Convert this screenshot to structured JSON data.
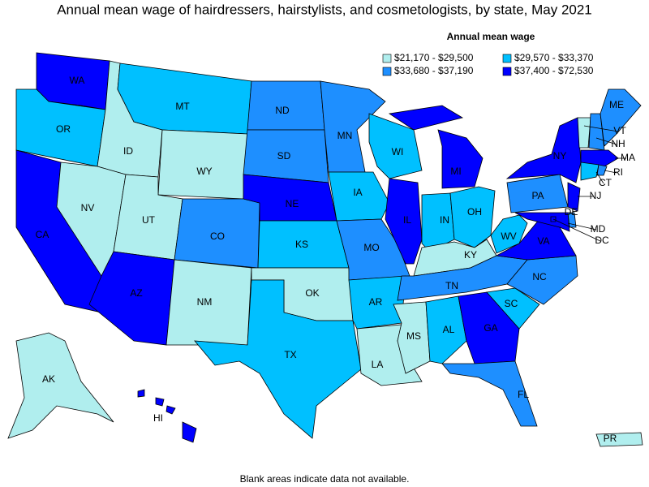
{
  "title": "Annual mean wage of hairdressers, hairstylists, and cosmetologists, by state, May 2021",
  "legend": {
    "title": "Annual mean wage",
    "items": [
      {
        "label": "$21,170 - $29,500",
        "color": "#b0eeee"
      },
      {
        "label": "$29,570 - $33,370",
        "color": "#00c0ff"
      },
      {
        "label": "$33,680 - $37,190",
        "color": "#1e8fff"
      },
      {
        "label": "$37,400 - $72,530",
        "color": "#0000ff"
      }
    ]
  },
  "states": [
    {
      "abbr": "WA",
      "range": 3
    },
    {
      "abbr": "OR",
      "range": 1
    },
    {
      "abbr": "CA",
      "range": 3
    },
    {
      "abbr": "ID",
      "range": 0
    },
    {
      "abbr": "NV",
      "range": 0
    },
    {
      "abbr": "MT",
      "range": 1
    },
    {
      "abbr": "WY",
      "range": 0
    },
    {
      "abbr": "UT",
      "range": 0
    },
    {
      "abbr": "AZ",
      "range": 3
    },
    {
      "abbr": "CO",
      "range": 2
    },
    {
      "abbr": "NM",
      "range": 0
    },
    {
      "abbr": "ND",
      "range": 2
    },
    {
      "abbr": "SD",
      "range": 2
    },
    {
      "abbr": "NE",
      "range": 3
    },
    {
      "abbr": "KS",
      "range": 1
    },
    {
      "abbr": "OK",
      "range": 0
    },
    {
      "abbr": "TX",
      "range": 1
    },
    {
      "abbr": "MN",
      "range": 2
    },
    {
      "abbr": "IA",
      "range": 1
    },
    {
      "abbr": "MO",
      "range": 2
    },
    {
      "abbr": "AR",
      "range": 1
    },
    {
      "abbr": "LA",
      "range": 0
    },
    {
      "abbr": "WI",
      "range": 1
    },
    {
      "abbr": "IL",
      "range": 3
    },
    {
      "abbr": "MI",
      "range": 3
    },
    {
      "abbr": "IN",
      "range": 1
    },
    {
      "abbr": "OH",
      "range": 1
    },
    {
      "abbr": "KY",
      "range": 0
    },
    {
      "abbr": "TN",
      "range": 2
    },
    {
      "abbr": "MS",
      "range": 0
    },
    {
      "abbr": "AL",
      "range": 1
    },
    {
      "abbr": "GA",
      "range": 3
    },
    {
      "abbr": "FL",
      "range": 2
    },
    {
      "abbr": "SC",
      "range": 1
    },
    {
      "abbr": "NC",
      "range": 2
    },
    {
      "abbr": "VA",
      "range": 3
    },
    {
      "abbr": "WV",
      "range": 1
    },
    {
      "abbr": "PA",
      "range": 2
    },
    {
      "abbr": "NY",
      "range": 3
    },
    {
      "abbr": "NJ",
      "range": 3
    },
    {
      "abbr": "DE",
      "range": 2
    },
    {
      "abbr": "MD",
      "range": 3
    },
    {
      "abbr": "DC",
      "range": 3
    },
    {
      "abbr": "VT",
      "range": 0
    },
    {
      "abbr": "NH",
      "range": 2
    },
    {
      "abbr": "ME",
      "range": 2
    },
    {
      "abbr": "MA",
      "range": 3
    },
    {
      "abbr": "CT",
      "range": 1
    },
    {
      "abbr": "RI",
      "range": 2
    },
    {
      "abbr": "AK",
      "range": 0
    },
    {
      "abbr": "HI",
      "range": 3
    },
    {
      "abbr": "PR",
      "range": 0
    }
  ],
  "footnote": "Blank areas indicate data not available."
}
